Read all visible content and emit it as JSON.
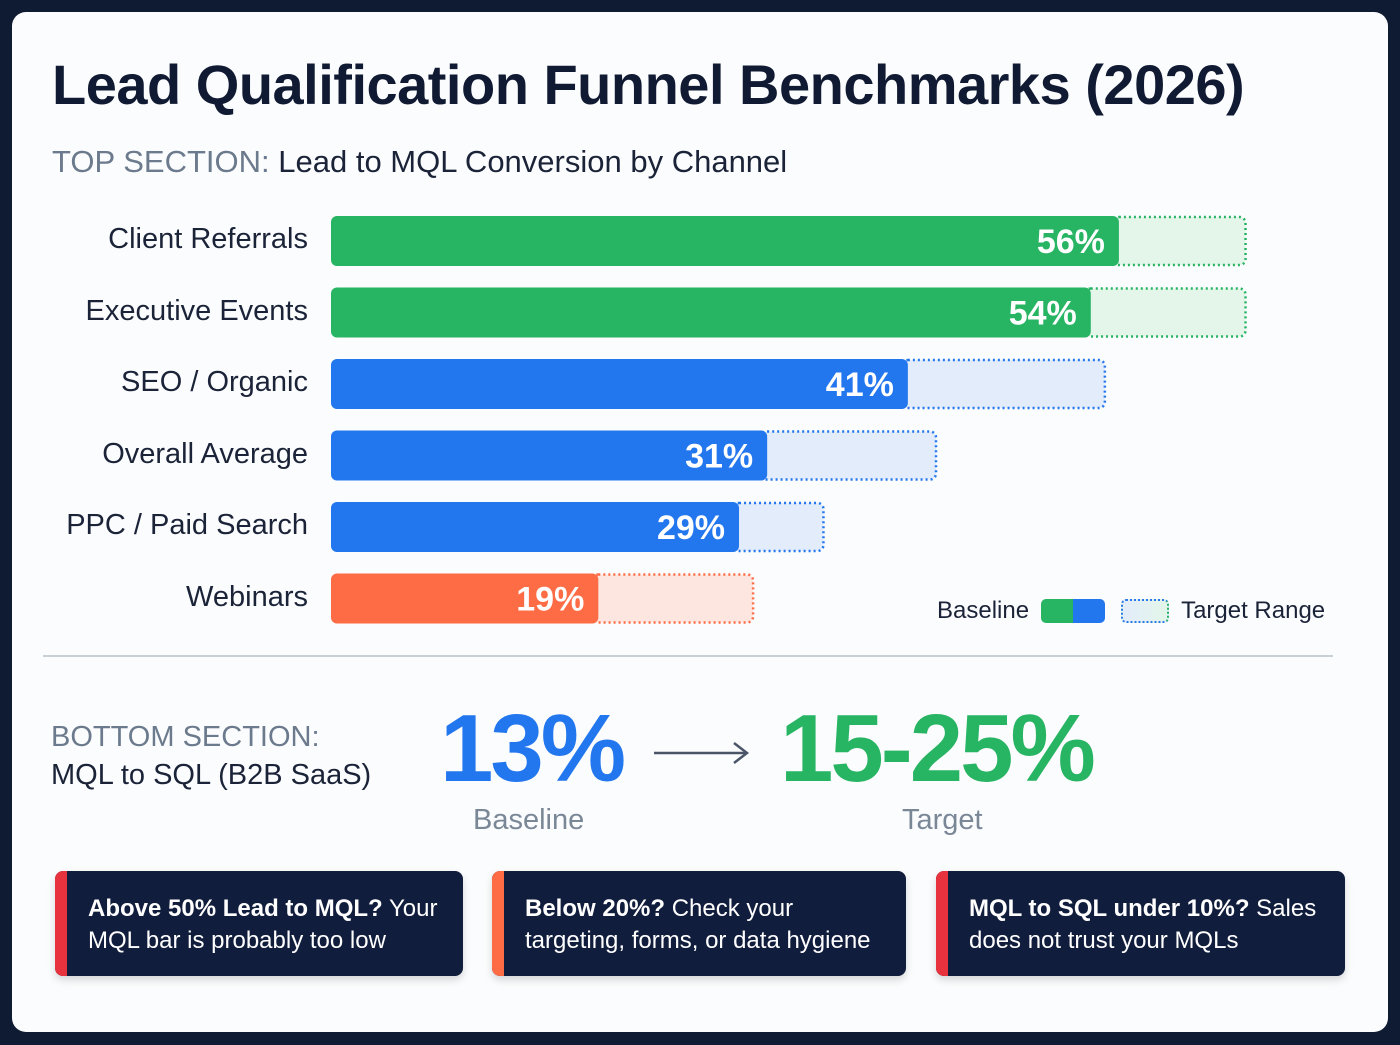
{
  "title": "Lead Qualification Funnel Benchmarks (2026)",
  "top_section": {
    "prefix": "TOP SECTION:",
    "title": "Lead to MQL Conversion by Channel"
  },
  "colors": {
    "green": "#27b463",
    "blue": "#2377ee",
    "orange": "#fd6c45",
    "navy": "#111d3c",
    "red": "#e8333f"
  },
  "chart_data": {
    "type": "bar",
    "orientation": "horizontal",
    "categories": [
      "Client Referrals",
      "Executive Events",
      "SEO / Organic",
      "Overall Average",
      "PPC / Paid Search",
      "Webinars"
    ],
    "series": [
      {
        "name": "Baseline",
        "values": [
          56,
          54,
          41,
          31,
          29,
          19
        ],
        "labels": [
          "56%",
          "54%",
          "41%",
          "31%",
          "29%",
          "19%"
        ]
      },
      {
        "name": "Target Range",
        "values": [
          65,
          65,
          55,
          43,
          35,
          30
        ]
      }
    ],
    "bar_colors": [
      "green",
      "green",
      "blue",
      "blue",
      "blue",
      "orange"
    ],
    "xlim": [
      0,
      100
    ],
    "grid": false,
    "legend": {
      "position": "bottom-right",
      "baseline": "Baseline",
      "target": "Target Range"
    }
  },
  "bottom_section": {
    "prefix": "BOTTOM SECTION:",
    "title": "MQL to SQL (B2B SaaS)",
    "baseline_value": "13%",
    "baseline_label": "Baseline",
    "target_value": "15-25%",
    "target_label": "Target",
    "arrow_icon": "arrow-right-icon"
  },
  "tips": [
    {
      "bold": "Above 50% Lead to MQL?",
      "text": " Your MQL bar is probably too low",
      "accent": "#e8333f"
    },
    {
      "bold": "Below 20%?",
      "text": " Check your targeting, forms, or data hygiene",
      "accent": "#fd6c45"
    },
    {
      "bold": "MQL to SQL under 10%?",
      "text": " Sales does not trust your MQLs",
      "accent": "#e8333f"
    }
  ]
}
